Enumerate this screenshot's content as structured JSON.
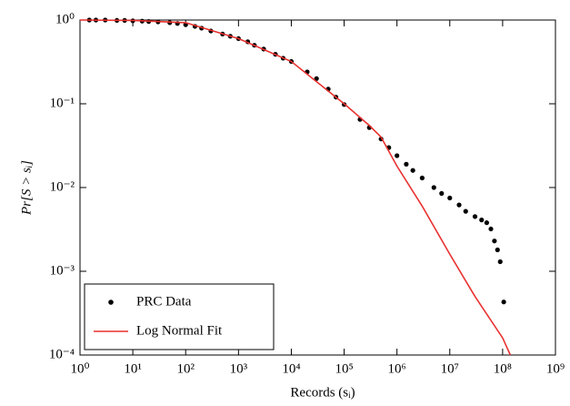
{
  "chart_data": {
    "type": "scatter",
    "y_label": "Pr[S > sᵢ]",
    "x_label": "Records (sᵢ)",
    "x_log": true,
    "y_log": true,
    "xlim": [
      1,
      1000000000
    ],
    "ylim": [
      0.0001,
      1
    ],
    "xticks": [
      {
        "value": 1,
        "label": "10⁰"
      },
      {
        "value": 10,
        "label": "10¹"
      },
      {
        "value": 100,
        "label": "10²"
      },
      {
        "value": 1000,
        "label": "10³"
      },
      {
        "value": 10000,
        "label": "10⁴"
      },
      {
        "value": 100000,
        "label": "10⁵"
      },
      {
        "value": 1000000,
        "label": "10⁶"
      },
      {
        "value": 10000000,
        "label": "10⁷"
      },
      {
        "value": 100000000,
        "label": "10⁸"
      },
      {
        "value": 1000000000,
        "label": "10⁹"
      }
    ],
    "yticks": [
      {
        "value": 0.0001,
        "label": "10⁻⁴"
      },
      {
        "value": 0.001,
        "label": "10⁻³"
      },
      {
        "value": 0.01,
        "label": "10⁻²"
      },
      {
        "value": 0.1,
        "label": "10⁻¹"
      },
      {
        "value": 1,
        "label": "10⁰"
      }
    ],
    "legend": "lower left",
    "series": [
      {
        "name": "PRC Data",
        "type": "scatter",
        "color": "#000000",
        "x": [
          1.5,
          2,
          3,
          5,
          7,
          10,
          15,
          20,
          30,
          50,
          70,
          100,
          150,
          200,
          300,
          500,
          700,
          1000,
          1500,
          2000,
          3000,
          5000,
          7000,
          10000,
          20000,
          30000,
          50000,
          70000,
          100000,
          200000,
          300000,
          500000,
          700000,
          1000000,
          1500000,
          2000000,
          3000000,
          5000000,
          7000000,
          10000000,
          15000000,
          20000000,
          30000000,
          40000000,
          50000000,
          60000000,
          70000000,
          80000000,
          90000000,
          105000000
        ],
        "values": [
          1,
          1,
          1,
          0.99,
          0.99,
          0.98,
          0.97,
          0.96,
          0.95,
          0.93,
          0.91,
          0.88,
          0.84,
          0.8,
          0.74,
          0.68,
          0.64,
          0.6,
          0.55,
          0.5,
          0.45,
          0.39,
          0.35,
          0.32,
          0.24,
          0.2,
          0.15,
          0.12,
          0.098,
          0.065,
          0.052,
          0.038,
          0.03,
          0.024,
          0.019,
          0.016,
          0.013,
          0.01,
          0.0085,
          0.0075,
          0.0062,
          0.0052,
          0.0045,
          0.0041,
          0.0038,
          0.0032,
          0.0023,
          0.0018,
          0.0013,
          0.00043
        ]
      },
      {
        "name": "Log Normal Fit",
        "type": "line",
        "color": "#e8312f",
        "x": [
          1,
          10,
          100,
          1000,
          10000,
          100000,
          300000,
          500000,
          1000000,
          3000000,
          10000000,
          30000000,
          100000000,
          140000000
        ],
        "values": [
          1,
          0.99,
          0.93,
          0.6,
          0.32,
          0.1,
          0.055,
          0.04,
          0.018,
          0.006,
          0.0016,
          0.0005,
          0.00016,
          0.0001
        ]
      }
    ]
  }
}
